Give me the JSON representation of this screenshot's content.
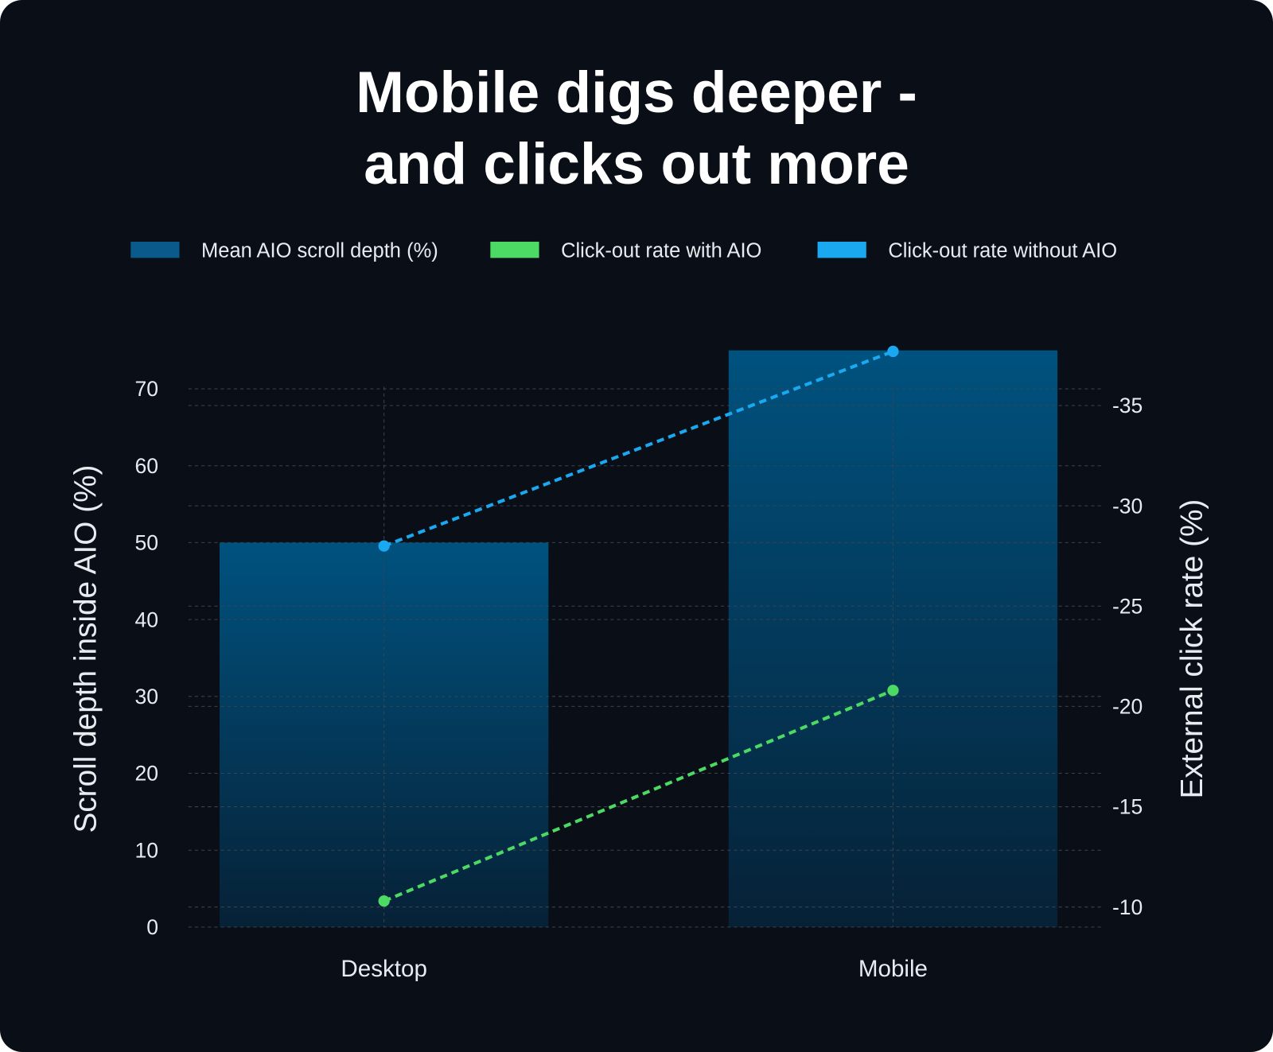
{
  "chart_data": {
    "type": "bar",
    "title": "Mobile digs deeper -\nand clicks out more",
    "categories": [
      "Desktop",
      "Mobile"
    ],
    "series": [
      {
        "name": "Mean AIO scroll depth (%)",
        "type": "bar",
        "color": "#0a5a8c",
        "values": [
          50,
          75
        ]
      },
      {
        "name": "Click-out rate with AIO",
        "type": "line",
        "axis": "y2",
        "color": "#4cd964",
        "values": [
          -10.3,
          -20.8
        ]
      },
      {
        "name": "Click-out rate without AIO",
        "type": "line",
        "axis": "y2",
        "color": "#1aa8f0",
        "values": [
          -28,
          -37.7
        ]
      }
    ],
    "ylabel": "Scroll depth inside AIO (%)",
    "y2label": "External click rate (%)",
    "ylim": [
      0,
      75
    ],
    "yticks": [
      0,
      10,
      20,
      30,
      40,
      50,
      60,
      70
    ],
    "y2lim": [
      -9,
      -37.75
    ],
    "y2ticks": [
      -10,
      -15,
      -20,
      -25,
      -30,
      -35
    ],
    "grid": true,
    "legend": "top"
  }
}
